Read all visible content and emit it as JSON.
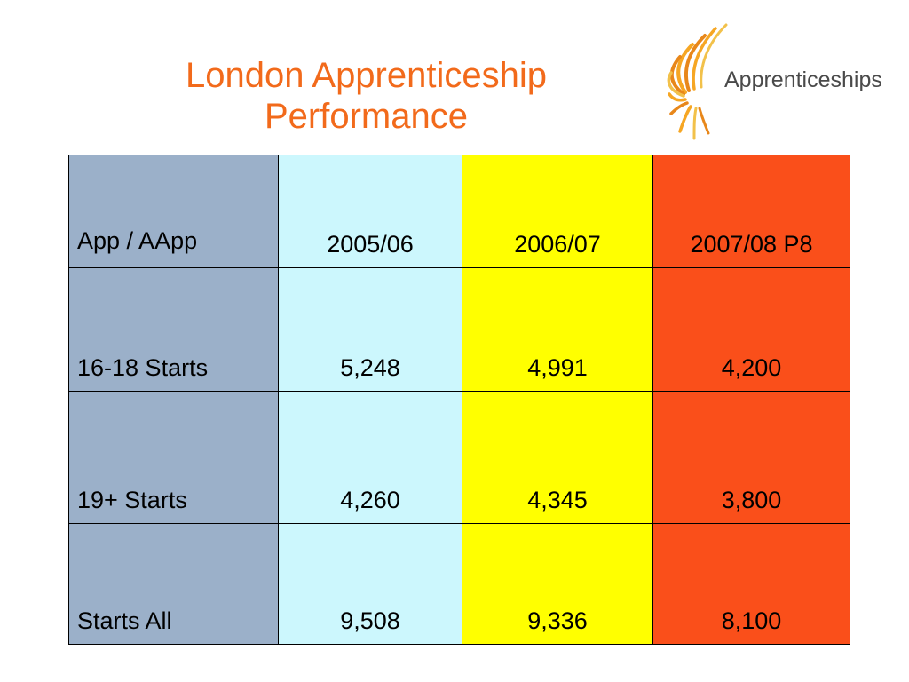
{
  "slide": {
    "title_line1": "London Apprenticeship",
    "title_line2": "Performance",
    "title_color": "#f26a1b"
  },
  "logo": {
    "text": "Apprenticeships",
    "mark_colors": [
      "#f6a623",
      "#e8871a",
      "#f2c14a"
    ]
  },
  "table": {
    "header": {
      "label": "App / AApp",
      "cols": [
        "2005/06",
        "2006/07",
        "2007/08 P8"
      ]
    },
    "rows": [
      {
        "label": "16-18 Starts",
        "values": [
          "5,248",
          "4,991",
          "4,200"
        ]
      },
      {
        "label": "19+ Starts",
        "values": [
          "4,260",
          "4,345",
          "3,800"
        ]
      },
      {
        "label": "Starts All",
        "values": [
          "9,508",
          "9,336",
          "8,100"
        ]
      }
    ],
    "colors": {
      "label_col": "#9bb0c9",
      "col_2005": "#ccf7fd",
      "col_2006": "#ffff00",
      "col_2007": "#fa4f1a"
    }
  }
}
